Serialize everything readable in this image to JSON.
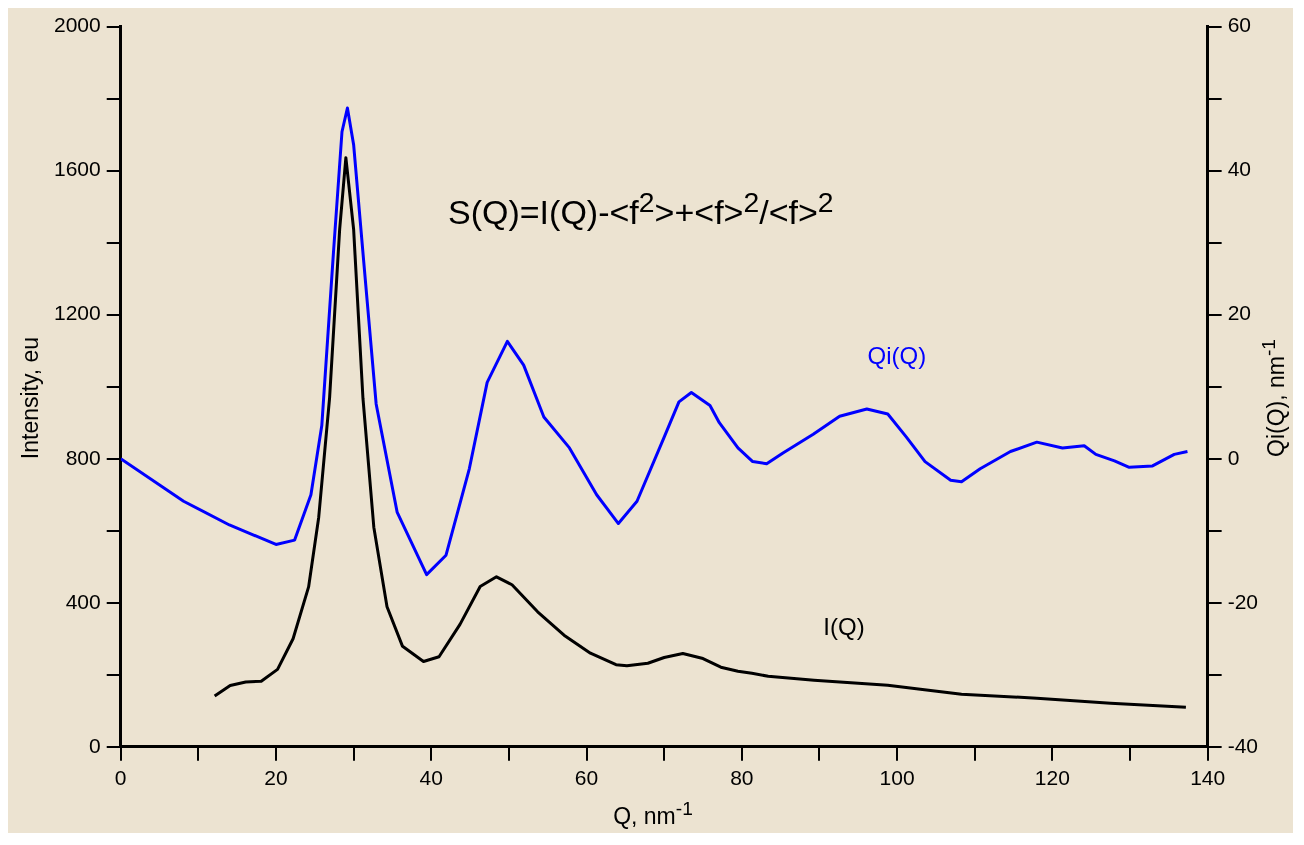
{
  "chart_data": {
    "type": "line",
    "xlabel": "Q, nm$^{-1}$",
    "ylabel": "Intensity, eu",
    "y2label": "Qi(Q), nm$^{-1}$",
    "xlim": [
      0,
      140
    ],
    "xticks": [
      0,
      {
        "value": 10,
        "label": null
      },
      20,
      {
        "value": 30,
        "label": null
      },
      40,
      {
        "value": 50,
        "label": null
      },
      60,
      {
        "value": 70,
        "label": null
      },
      80,
      {
        "value": 90,
        "label": null
      },
      100,
      {
        "value": 110,
        "label": null
      },
      120,
      {
        "value": 130,
        "label": null
      },
      140
    ],
    "ylim": [
      0,
      2000
    ],
    "yticks": [
      0,
      {
        "value": 200,
        "label": null
      },
      400,
      {
        "value": 600,
        "label": null
      },
      800,
      {
        "value": 1000,
        "label": null
      },
      1200,
      {
        "value": 1400,
        "label": null
      },
      1600,
      {
        "value": 1800,
        "label": null
      },
      2000
    ],
    "y2lim": [
      -40,
      60
    ],
    "y2ticks": [
      -40,
      {
        "value": -30,
        "label": null
      },
      -20,
      {
        "value": -10,
        "label": null
      },
      0,
      {
        "value": 10,
        "label": null
      },
      20,
      {
        "value": 30,
        "label": null
      },
      40,
      {
        "value": 50,
        "label": null
      },
      60
    ],
    "grid": false,
    "legend": false,
    "marker": "none",
    "line_style": "solid",
    "series": [
      {
        "name": "I(Q)",
        "color": "#000000",
        "x": [
          12.1,
          14.1,
          16.1,
          18.1,
          20.2,
          22.2,
          24.2,
          25.5,
          26.9,
          28.2,
          29.0,
          30.0,
          31.2,
          32.6,
          34.3,
          36.3,
          39.0,
          41.0,
          43.7,
          46.3,
          48.4,
          50.4,
          53.7,
          57.1,
          60.5,
          63.8,
          65.2,
          67.9,
          70.0,
          72.4,
          75.0,
          77.3,
          79.5,
          81.3,
          83.4,
          89.3,
          98.8,
          103.0,
          108.3,
          118.0,
          127.5,
          137.2
        ],
        "values": [
          141,
          170,
          180,
          182,
          215,
          300,
          444,
          637,
          968,
          1437,
          1636,
          1437,
          968,
          610,
          389,
          279,
          237,
          250,
          340,
          445,
          472,
          450,
          375,
          310,
          260,
          228,
          225,
          232,
          248,
          259,
          245,
          221,
          210,
          204,
          196,
          185,
          171,
          160,
          146,
          135,
          121,
          110
        ]
      },
      {
        "name": "Qi(Q)",
        "color": "#0000ff",
        "axis": "y2",
        "x": [
          0,
          8.1,
          14.0,
          20.0,
          22.4,
          24.5,
          25.9,
          27.4,
          28.5,
          29.2,
          30.0,
          31.2,
          32.9,
          35.6,
          39.4,
          41.9,
          44.9,
          47.2,
          49.8,
          51.9,
          54.5,
          57.8,
          61.3,
          64.1,
          66.5,
          70.0,
          71.9,
          73.5,
          75.9,
          77.1,
          79.5,
          81.4,
          83.2,
          85.3,
          89.2,
          92.6,
          96.1,
          98.8,
          101.2,
          103.6,
          106.9,
          108.3,
          110.7,
          114.6,
          118.0,
          121.3,
          124.1,
          125.6,
          128.0,
          129.9,
          132.9,
          135.7,
          137.4
        ],
        "values": [
          0,
          -5.9,
          -9.2,
          -11.9,
          -11.3,
          -5.0,
          4.6,
          28.6,
          45.4,
          48.7,
          43.6,
          28.6,
          7.6,
          -7.4,
          -16.1,
          -13.4,
          -1.4,
          10.6,
          16.3,
          13.0,
          5.8,
          1.5,
          -5.0,
          -9.0,
          -5.9,
          3.0,
          7.9,
          9.2,
          7.4,
          5.0,
          1.5,
          -0.4,
          -0.7,
          0.8,
          3.4,
          5.9,
          6.9,
          6.2,
          3.0,
          -0.4,
          -3.0,
          -3.2,
          -1.4,
          1.0,
          2.3,
          1.5,
          1.8,
          0.6,
          -0.3,
          -1.2,
          -1.0,
          0.6,
          1.0
        ]
      }
    ],
    "annotations": [
      "S(Q)=I(Q)-<f$^{2}$>+<f>$^{2}$/<f>$^{2}$"
    ]
  }
}
